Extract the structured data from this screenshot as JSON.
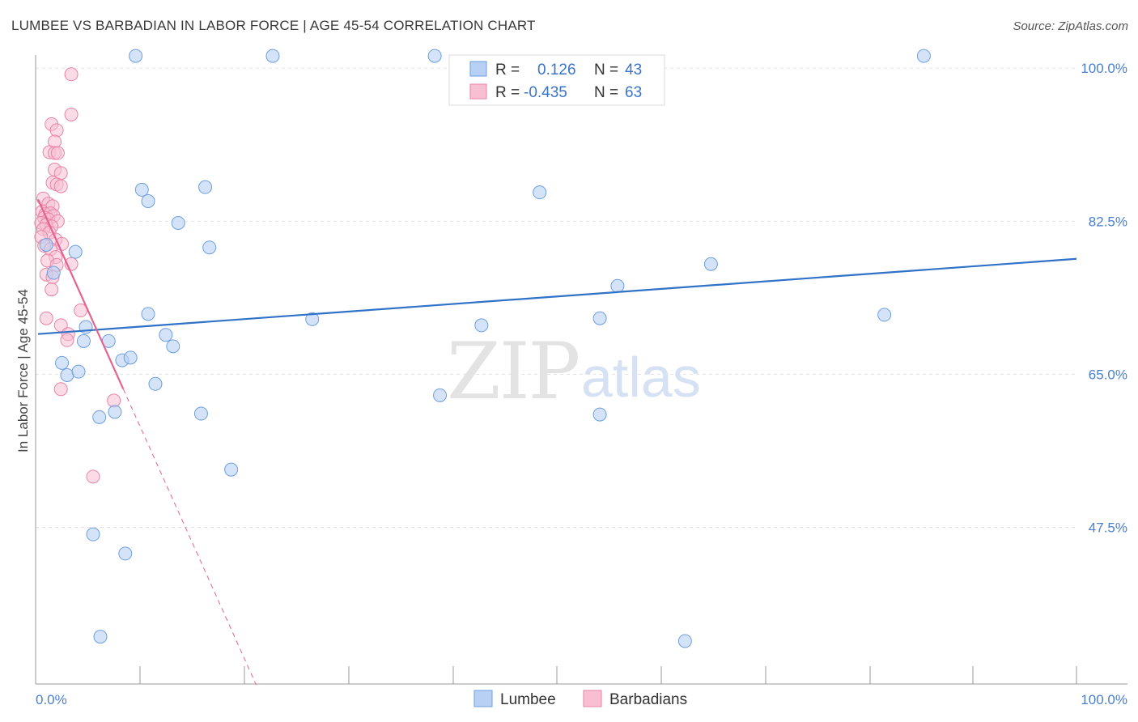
{
  "title": "LUMBEE VS BARBADIAN IN LABOR FORCE | AGE 45-54 CORRELATION CHART",
  "source": "Source: ZipAtlas.com",
  "watermark": {
    "zip": "ZIP",
    "atlas": "atlas"
  },
  "colors": {
    "lumbee_fill": "#b7d0f3",
    "lumbee_stroke": "#6d9fe0",
    "lumbee_line": "#2f72c8",
    "barb_fill": "#f7bfd1",
    "barb_stroke": "#e983a6",
    "barb_line": "#e5638f",
    "tick_text": "#4a7fd0",
    "grid": "#e2e2e2"
  },
  "legend": {
    "rows": [
      {
        "r_label": "R =",
        "r_value": "0.126",
        "n_label": "N =",
        "n_value": "43"
      },
      {
        "r_label": "R =",
        "r_value": "-0.435",
        "n_label": "N =",
        "n_value": "63"
      }
    ]
  },
  "bottom_legend": {
    "lumbee": "Lumbee",
    "barbadians": "Barbadians"
  },
  "chart_data": {
    "type": "scatter",
    "ylabel": "In Labor Force | Age 45-54",
    "xlabel": "",
    "xlim": [
      0,
      100
    ],
    "ylim": [
      29.5,
      101.5
    ],
    "x_tick_labels": [
      "0.0%",
      "100.0%"
    ],
    "y_ticks": [
      100.0,
      82.5,
      65.0,
      47.5
    ],
    "y_tick_labels": [
      "100.0%",
      "82.5%",
      "65.0%",
      "47.5%"
    ],
    "grid": true,
    "legend_position": "top-center",
    "series": [
      {
        "name": "Lumbee",
        "r": 0.126,
        "n": 43,
        "trend": {
          "x": [
            0,
            100
          ],
          "y": [
            69.6,
            78.2
          ],
          "dashed_from": null
        },
        "points": [
          [
            9.4,
            101.4
          ],
          [
            22.6,
            101.4
          ],
          [
            38.2,
            101.4
          ],
          [
            85.3,
            101.4
          ],
          [
            10.0,
            86.1
          ],
          [
            10.6,
            84.8
          ],
          [
            16.1,
            86.4
          ],
          [
            13.5,
            82.3
          ],
          [
            48.3,
            85.8
          ],
          [
            16.5,
            79.5
          ],
          [
            64.8,
            77.6
          ],
          [
            55.8,
            75.1
          ],
          [
            3.6,
            79.0
          ],
          [
            0.8,
            79.8
          ],
          [
            1.5,
            76.6
          ],
          [
            10.6,
            71.9
          ],
          [
            26.4,
            71.3
          ],
          [
            42.7,
            70.6
          ],
          [
            54.1,
            71.4
          ],
          [
            81.5,
            71.8
          ],
          [
            4.6,
            70.4
          ],
          [
            4.4,
            68.8
          ],
          [
            6.8,
            68.8
          ],
          [
            12.3,
            69.5
          ],
          [
            13.0,
            68.2
          ],
          [
            2.3,
            66.3
          ],
          [
            2.8,
            64.9
          ],
          [
            3.9,
            65.3
          ],
          [
            8.1,
            66.6
          ],
          [
            8.9,
            66.9
          ],
          [
            11.3,
            63.9
          ],
          [
            38.7,
            62.6
          ],
          [
            5.9,
            60.1
          ],
          [
            7.4,
            60.7
          ],
          [
            15.7,
            60.5
          ],
          [
            54.1,
            60.4
          ],
          [
            18.6,
            54.1
          ],
          [
            5.3,
            46.7
          ],
          [
            8.4,
            44.5
          ],
          [
            6.0,
            35.0
          ],
          [
            62.3,
            34.5
          ]
        ]
      },
      {
        "name": "Barbadians",
        "r": -0.435,
        "n": 63,
        "trend": {
          "x": [
            0,
            21
          ],
          "y": [
            85.0,
            29.5
          ],
          "solid_until_x": 8.2
        },
        "points": [
          [
            3.2,
            99.3
          ],
          [
            3.2,
            94.7
          ],
          [
            1.3,
            93.6
          ],
          [
            1.8,
            92.9
          ],
          [
            1.6,
            91.6
          ],
          [
            1.1,
            90.4
          ],
          [
            1.6,
            90.3
          ],
          [
            1.9,
            90.3
          ],
          [
            1.6,
            88.4
          ],
          [
            2.2,
            88.0
          ],
          [
            1.4,
            86.9
          ],
          [
            1.8,
            86.7
          ],
          [
            2.2,
            86.5
          ],
          [
            0.5,
            85.1
          ],
          [
            1.0,
            84.5
          ],
          [
            1.4,
            84.2
          ],
          [
            0.4,
            83.6
          ],
          [
            0.7,
            83.3
          ],
          [
            1.2,
            83.4
          ],
          [
            1.5,
            83.1
          ],
          [
            0.6,
            82.9
          ],
          [
            1.0,
            82.7
          ],
          [
            1.9,
            82.5
          ],
          [
            0.3,
            82.3
          ],
          [
            0.8,
            82.1
          ],
          [
            1.3,
            81.9
          ],
          [
            0.5,
            81.6
          ],
          [
            1.1,
            81.2
          ],
          [
            0.3,
            80.7
          ],
          [
            1.7,
            80.4
          ],
          [
            2.3,
            79.9
          ],
          [
            0.6,
            79.7
          ],
          [
            1.2,
            79.3
          ],
          [
            1.7,
            78.4
          ],
          [
            0.9,
            78.0
          ],
          [
            3.2,
            77.6
          ],
          [
            1.8,
            77.5
          ],
          [
            0.8,
            76.4
          ],
          [
            1.4,
            76.1
          ],
          [
            1.3,
            74.7
          ],
          [
            4.1,
            72.3
          ],
          [
            0.8,
            71.4
          ],
          [
            2.2,
            70.6
          ],
          [
            2.9,
            69.6
          ],
          [
            2.8,
            68.9
          ],
          [
            2.2,
            63.3
          ],
          [
            7.3,
            62.0
          ],
          [
            5.3,
            53.3
          ]
        ]
      }
    ]
  }
}
